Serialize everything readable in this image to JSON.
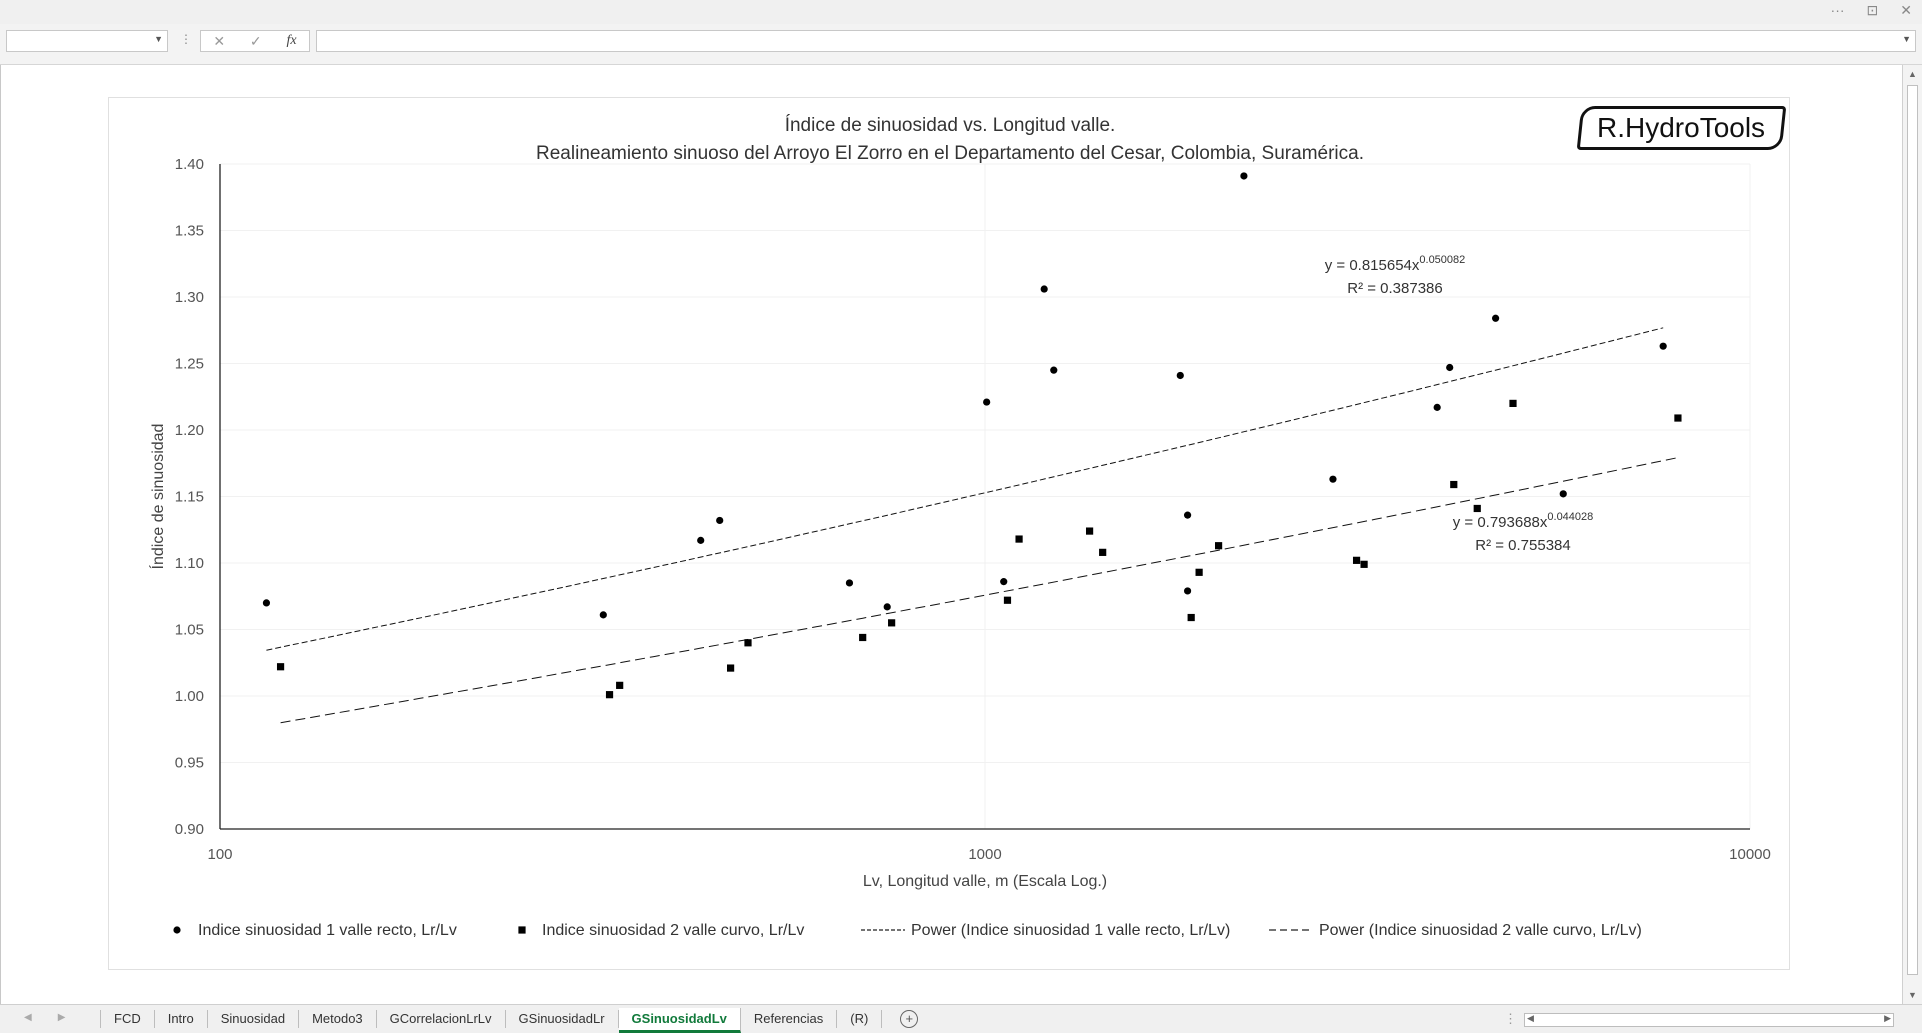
{
  "window": {
    "ctrl_more": "···",
    "ctrl_restore": "⊡",
    "ctrl_close": "✕"
  },
  "formula_bar": {
    "name_box": "",
    "cancel": "✕",
    "enter": "✓",
    "fx": "fx",
    "value": ""
  },
  "logo": "R.HydroTools",
  "chart_data": {
    "type": "scatter",
    "title": "Índice de sinuosidad vs. Longitud valle.",
    "subtitle": "Realineamiento sinuoso del Arroyo El Zorro en el Departamento del Cesar, Colombia, Suramérica.",
    "xlabel": "Lv, Longitud valle, m (Escala Log.)",
    "ylabel": "Índice de sinuosidad",
    "x_scale": "log",
    "xlim": [
      100,
      10000
    ],
    "ylim": [
      0.9,
      1.4
    ],
    "x_ticks": [
      "100",
      "1000",
      "10000"
    ],
    "y_ticks": [
      "0.90",
      "0.95",
      "1.00",
      "1.05",
      "1.10",
      "1.15",
      "1.20",
      "1.25",
      "1.30",
      "1.35",
      "1.40"
    ],
    "legend_position": "bottom",
    "series": [
      {
        "name": "Indice sinuosidad 1 valle recto, Lr/Lv",
        "marker": "circle",
        "points": [
          [
            115,
            1.07
          ],
          [
            317,
            1.061
          ],
          [
            425,
            1.117
          ],
          [
            450,
            1.132
          ],
          [
            665,
            1.085
          ],
          [
            745,
            1.067
          ],
          [
            1005,
            1.221
          ],
          [
            1058,
            1.086
          ],
          [
            1195,
            1.306
          ],
          [
            1230,
            1.245
          ],
          [
            1800,
            1.241
          ],
          [
            1840,
            1.136
          ],
          [
            1840,
            1.079
          ],
          [
            2180,
            1.391
          ],
          [
            2850,
            1.163
          ],
          [
            3900,
            1.217
          ],
          [
            4050,
            1.247
          ],
          [
            4650,
            1.284
          ],
          [
            5700,
            1.152
          ],
          [
            7700,
            1.263
          ]
        ]
      },
      {
        "name": "Indice sinuosidad 2 valle curvo, Lr/Lv",
        "marker": "square",
        "points": [
          [
            120,
            1.022
          ],
          [
            323,
            1.001
          ],
          [
            333,
            1.008
          ],
          [
            465,
            1.021
          ],
          [
            490,
            1.04
          ],
          [
            692,
            1.044
          ],
          [
            755,
            1.055
          ],
          [
            1070,
            1.072
          ],
          [
            1108,
            1.118
          ],
          [
            1370,
            1.124
          ],
          [
            1425,
            1.108
          ],
          [
            1860,
            1.059
          ],
          [
            1905,
            1.093
          ],
          [
            2020,
            1.113
          ],
          [
            3060,
            1.102
          ],
          [
            3130,
            1.099
          ],
          [
            4100,
            1.159
          ],
          [
            4400,
            1.141
          ],
          [
            4900,
            1.22
          ],
          [
            8050,
            1.209
          ]
        ]
      }
    ],
    "trendlines": [
      {
        "name": "Power (Indice sinuosidad 1 valle recto, Lr/Lv)",
        "type": "power",
        "a": 0.815654,
        "b": 0.050082,
        "x_range": [
          115,
          7700
        ],
        "equation_base": "y = 0.815654x",
        "equation_exp": "0.050082",
        "r2": "R² = 0.387386",
        "dash": "6,3"
      },
      {
        "name": "Power (Indice sinuosidad 2 valle curvo, Lr/Lv)",
        "type": "power",
        "a": 0.793688,
        "b": 0.044028,
        "x_range": [
          120,
          8050
        ],
        "equation_base": "y = 0.793688x",
        "equation_exp": "0.044028",
        "r2": "R² = 0.755384",
        "dash": "10,5"
      }
    ]
  },
  "tabs": {
    "items": [
      "FCD",
      "Intro",
      "Sinuosidad",
      "Metodo3",
      "GCorrelacionLrLv",
      "GSinuosidadLr",
      "GSinuosidadLv",
      "Referencias",
      "(R)"
    ],
    "active_index": 6,
    "add_label": "+",
    "more": "⋮"
  }
}
